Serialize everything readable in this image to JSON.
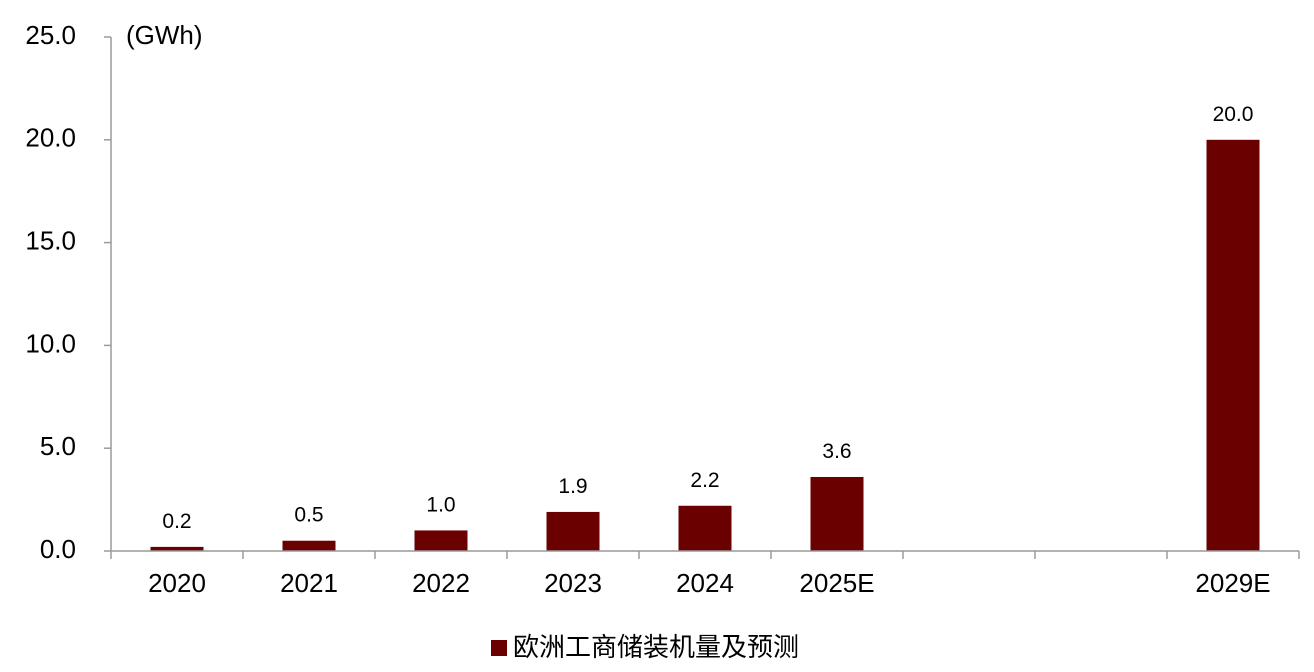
{
  "chart_data": {
    "type": "bar",
    "unit_label": "(GWh)",
    "categories": [
      "2020",
      "2021",
      "2022",
      "2023",
      "2024",
      "2025E",
      "",
      "",
      "2029E"
    ],
    "series": [
      {
        "name": "欧洲工商储装机量及预测",
        "color": "#6b0000",
        "values": [
          0.2,
          0.5,
          1.0,
          1.9,
          2.2,
          3.6,
          null,
          null,
          20.0
        ],
        "labels": [
          "0.2",
          "0.5",
          "1.0",
          "1.9",
          "2.2",
          "3.6",
          "",
          "",
          "20.0"
        ]
      }
    ],
    "ylim": [
      0,
      25
    ],
    "yticks": [
      0,
      5,
      10,
      15,
      20,
      25
    ],
    "ytick_labels": [
      "0.0",
      "5.0",
      "10.0",
      "15.0",
      "20.0",
      "25.0"
    ],
    "grid": false,
    "legend_position": "bottom-center",
    "axis_color": "#9a9a9a"
  }
}
